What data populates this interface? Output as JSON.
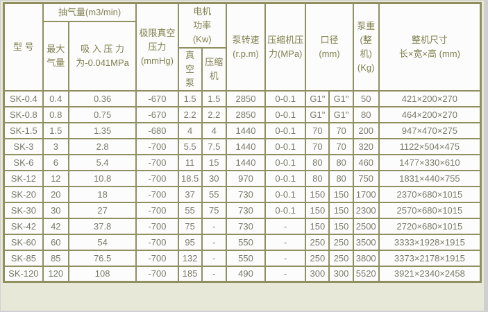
{
  "theme": {
    "page_background": "#e8e8d8",
    "frame_gray": "#cfcfcf",
    "table_border_color": "#8f8f60",
    "cell_background": "#fcfcfc",
    "header_text_color": "#7f7f4d",
    "data_text_color": "#7a7a6a"
  },
  "table": {
    "headers": {
      "model": "型 号",
      "pumping_capacity": "抽气量(m3/min)",
      "max_air_volume": "最大\n气量",
      "suction_pressure": "吸 入 压 力\n为-0.041MPa",
      "ultimate_vacuum": "极限真空\n压力\n(mmHg)",
      "motor_power": "电机\n功率\n(Kw)",
      "vacuum_pump": "真\n空\n泵",
      "compressor": "压缩\n机",
      "pump_speed": "泵转速\n(r.p.m)",
      "compressor_pressure": "压缩机压\n力(MPa)",
      "diameter": "口径\n(mm)",
      "pump_weight": "泵重\n(整机)\n(Kg)",
      "overall_dimensions": "整机尺寸\n长×宽×高 (mm)"
    },
    "rows": [
      [
        "SK-0.4",
        "0.4",
        "0.36",
        "-670",
        "1.5",
        "1.5",
        "2850",
        "0-0.1",
        "G1\"",
        "G1\"",
        "50",
        "421×200×270"
      ],
      [
        "SK-0.8",
        "0.8",
        "0.75",
        "-670",
        "2.2",
        "2.2",
        "2850",
        "0-0.1",
        "G1\"",
        "G1\"",
        "80",
        "464×200×270"
      ],
      [
        "SK-1.5",
        "1.5",
        "1.35",
        "-680",
        "4",
        "4",
        "1440",
        "0-0.1",
        "70",
        "70",
        "200",
        "947×470×275"
      ],
      [
        "SK-3",
        "3",
        "2.8",
        "-700",
        "5.5",
        "7.5",
        "1440",
        "0-0.1",
        "70",
        "70",
        "320",
        "1122×504×475"
      ],
      [
        "SK-6",
        "6",
        "5.4",
        "-700",
        "11",
        "15",
        "1440",
        "0-0.1",
        "80",
        "80",
        "460",
        "1477×330×610"
      ],
      [
        "SK-12",
        "12",
        "10.8",
        "-700",
        "18.5",
        "30",
        "970",
        "0-0.1",
        "80",
        "80",
        "750",
        "1831×440×755"
      ],
      [
        "SK-20",
        "20",
        "18",
        "-700",
        "37",
        "55",
        "730",
        "0-0.1",
        "150",
        "150",
        "1700",
        "2370×680×1015"
      ],
      [
        "SK-30",
        "30",
        "27",
        "-700",
        "55",
        "75",
        "730",
        "0-0.1",
        "150",
        "150",
        "2300",
        "2570×680×1015"
      ],
      [
        "SK-42",
        "42",
        "37.8",
        "-700",
        "75",
        "-",
        "730",
        "-",
        "150",
        "150",
        "2500",
        "2720×680×1015"
      ],
      [
        "SK-60",
        "60",
        "54",
        "-700",
        "95",
        "-",
        "550",
        "-",
        "250",
        "250",
        "3500",
        "3333×1928×1915"
      ],
      [
        "SK-85",
        "85",
        "76.5",
        "-700",
        "132",
        "-",
        "550",
        "-",
        "250",
        "250",
        "3800",
        "3373×2178×1915"
      ],
      [
        "SK-120",
        "120",
        "108",
        "-700",
        "185",
        "-",
        "490",
        "-",
        "300",
        "300",
        "5520",
        "3921×2340×2458"
      ]
    ]
  }
}
